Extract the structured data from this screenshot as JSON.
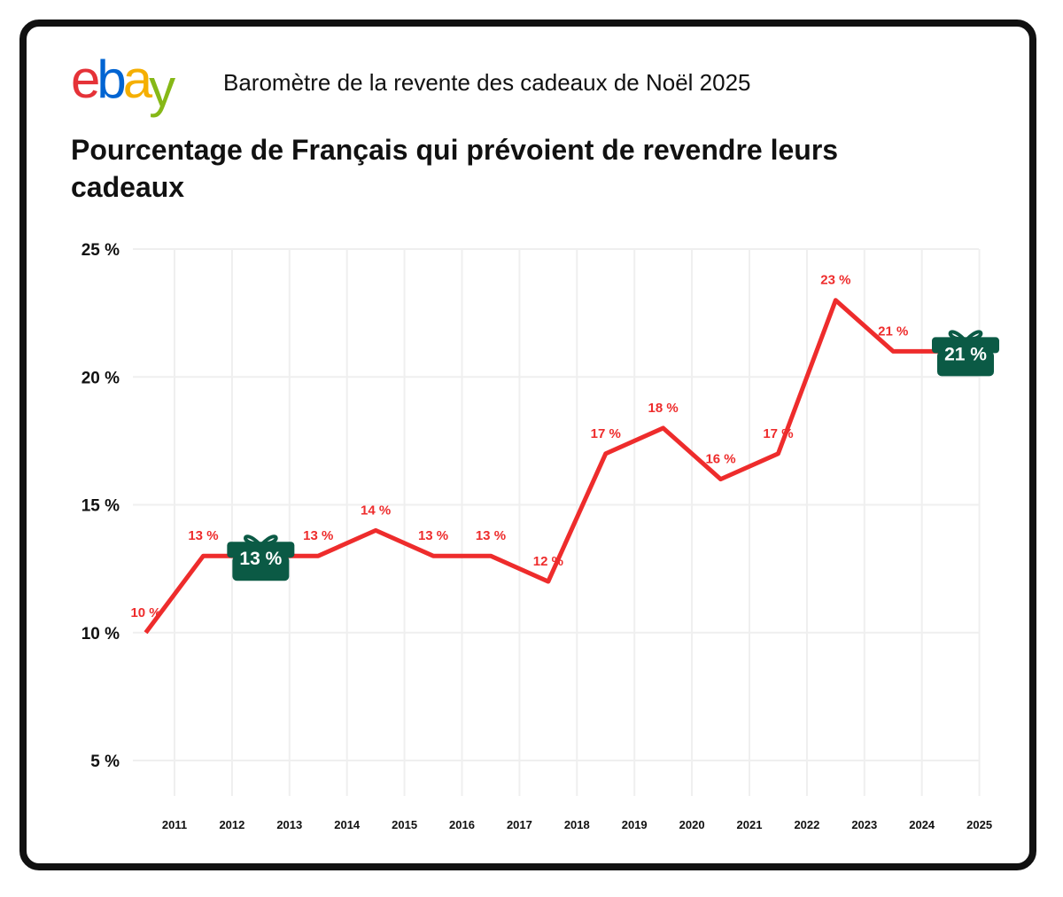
{
  "header": {
    "logo_letters": [
      "e",
      "b",
      "a",
      "y"
    ],
    "logo_colors": [
      "#e53238",
      "#0064d2",
      "#f5af02",
      "#86b817"
    ],
    "subtitle": "Baromètre de la revente des cadeaux de Noël 2025"
  },
  "chart_data": {
    "type": "line",
    "title": "Pourcentage de Français qui prévoient de revendre leurs cadeaux",
    "categories": [
      "2011",
      "2012",
      "2013",
      "2014",
      "2015",
      "2016",
      "2017",
      "2018",
      "2019",
      "2020",
      "2021",
      "2022",
      "2023",
      "2024",
      "2025"
    ],
    "values": [
      10,
      13,
      13,
      13,
      14,
      13,
      13,
      12,
      17,
      18,
      16,
      17,
      23,
      21,
      21
    ],
    "data_labels": [
      "10 %",
      "13 %",
      "13 %",
      "13 %",
      "14 %",
      "13 %",
      "13 %",
      "12 %",
      "17 %",
      "18 %",
      "16 %",
      "17 %",
      "23 %",
      "21 %",
      "21 %"
    ],
    "highlighted": [
      {
        "category": "2013",
        "label": "13 %"
      },
      {
        "category": "2025",
        "label": "21 %"
      }
    ],
    "ylim": [
      5,
      25
    ],
    "yticks": [
      5,
      10,
      15,
      20,
      25
    ],
    "ytick_labels": [
      "5 %",
      "10 %",
      "15 %",
      "20 %",
      "25 %"
    ],
    "grid": true,
    "line_color": "#ee2c2c",
    "highlight_color": "#0b5a45",
    "xlabel": "",
    "ylabel": ""
  }
}
